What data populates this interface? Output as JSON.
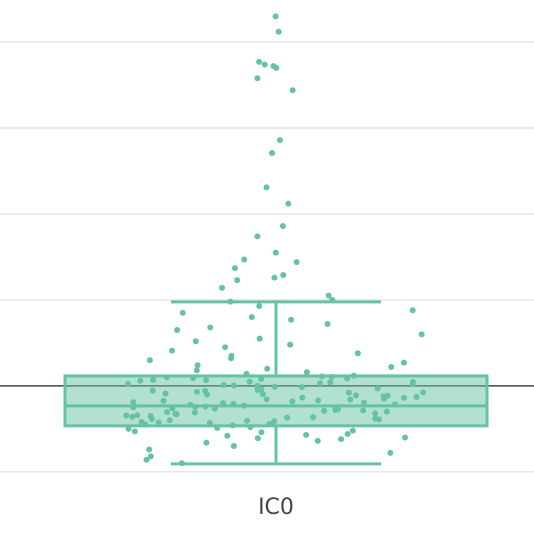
{
  "chart_data": {
    "type": "box",
    "category": "IC0",
    "color": "#66c2a5",
    "box_fill": "rgba(102,194,165,0.5)",
    "ylim": [
      -1.77,
      4.49
    ],
    "yticks": [
      -1,
      0,
      1,
      2,
      3,
      4
    ],
    "grid": true,
    "zeroline": true,
    "q1": -0.465,
    "median": -0.233,
    "q3": 0.116,
    "lower_fence": -0.907,
    "upper_fence": 0.977,
    "points": [
      4.3,
      4.12,
      3.77,
      3.74,
      3.72,
      3.7,
      3.58,
      3.44,
      2.86,
      2.71,
      2.31,
      2.12,
      1.86,
      1.74,
      1.55,
      1.47,
      1.44,
      1.37,
      1.29,
      1.26,
      1.23,
      1.14,
      1.05,
      1.0,
      0.98,
      0.93,
      0.88,
      0.85,
      0.8,
      0.77,
      0.72,
      0.68,
      0.65,
      0.6,
      0.55,
      0.52,
      0.48,
      0.45,
      0.41,
      0.38,
      0.35,
      0.32,
      0.3,
      0.27,
      0.24,
      0.22,
      0.2,
      0.18,
      0.16,
      0.14,
      0.12,
      0.11,
      0.1,
      0.09,
      0.08,
      0.07,
      0.06,
      0.05,
      0.04,
      0.03,
      0.02,
      0.01,
      0.0,
      -0.01,
      -0.02,
      -0.03,
      -0.04,
      -0.05,
      -0.06,
      -0.07,
      -0.08,
      -0.09,
      -0.1,
      -0.11,
      -0.12,
      -0.13,
      -0.14,
      -0.15,
      -0.16,
      -0.17,
      -0.18,
      -0.19,
      -0.2,
      -0.21,
      -0.22,
      -0.23,
      0.105,
      0.085,
      0.065,
      0.045,
      0.025,
      0.005,
      -0.015,
      -0.035,
      -0.055,
      -0.075,
      -0.095,
      -0.115,
      -0.135,
      -0.155,
      -0.175,
      -0.195,
      -0.215,
      -0.24,
      -0.25,
      -0.26,
      -0.27,
      -0.28,
      -0.29,
      -0.3,
      -0.31,
      -0.32,
      -0.33,
      -0.34,
      -0.35,
      -0.36,
      -0.37,
      -0.38,
      -0.39,
      -0.4,
      -0.41,
      -0.42,
      -0.43,
      -0.44,
      -0.45,
      -0.46,
      -0.245,
      -0.265,
      -0.285,
      -0.305,
      -0.325,
      -0.345,
      -0.365,
      -0.385,
      -0.405,
      -0.425,
      -0.445,
      -0.48,
      -0.5,
      -0.52,
      -0.54,
      -0.56,
      -0.58,
      -0.6,
      -0.62,
      -0.64,
      -0.66,
      -0.7,
      -0.74,
      -0.78,
      -0.82,
      -0.86,
      -0.9,
      -0.49,
      -0.53,
      -0.57,
      -0.61
    ]
  }
}
